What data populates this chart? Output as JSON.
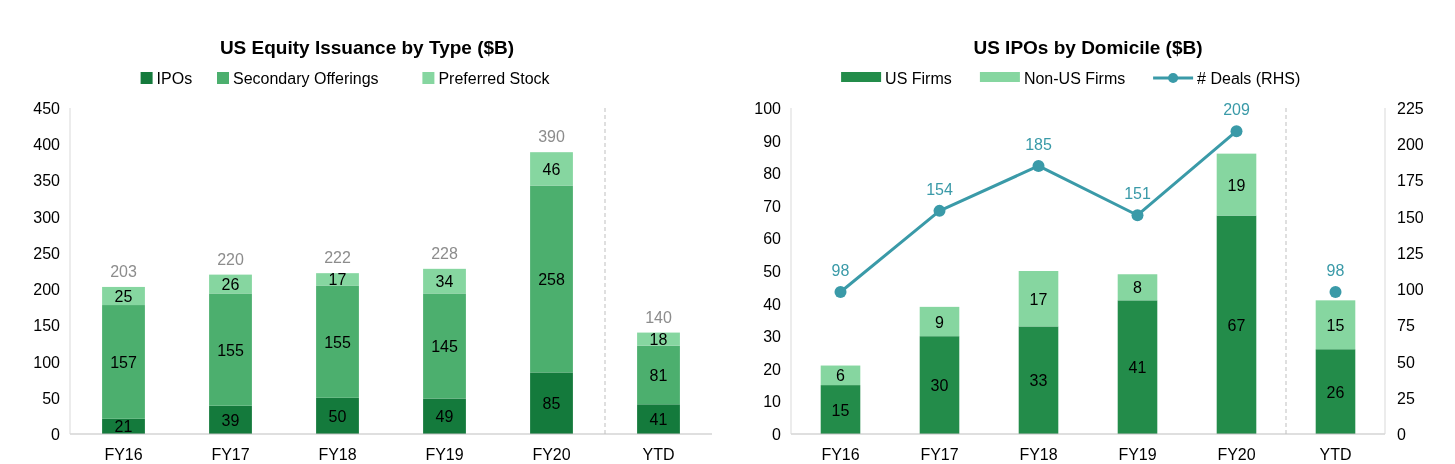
{
  "chart_data": [
    {
      "type": "bar",
      "title": "US Equity Issuance by Type ($B)",
      "categories": [
        "FY16",
        "FY17",
        "FY18",
        "FY19",
        "FY20",
        "YTD"
      ],
      "stacked": true,
      "legend": "top",
      "data_labels": true,
      "grid": false,
      "series": [
        {
          "name": "IPOs",
          "color": "#147a3c",
          "values": [
            21,
            39,
            50,
            49,
            85,
            41
          ]
        },
        {
          "name": "Secondary Offerings",
          "color": "#4caf6e",
          "values": [
            157,
            155,
            155,
            145,
            258,
            81
          ]
        },
        {
          "name": "Preferred Stock",
          "color": "#86d6a0",
          "values": [
            25,
            26,
            17,
            34,
            46,
            18
          ]
        }
      ],
      "totals": [
        "203",
        "220",
        "222",
        "228",
        "390",
        "140"
      ],
      "ylim": [
        0,
        450
      ],
      "yticks": [
        0,
        50,
        100,
        150,
        200,
        250,
        300,
        350,
        400,
        450
      ]
    },
    {
      "type": "bar",
      "title": "US IPOs by Domicile ($B)",
      "categories": [
        "FY16",
        "FY17",
        "FY18",
        "FY19",
        "FY20",
        "YTD"
      ],
      "stacked": true,
      "legend": "top",
      "data_labels": true,
      "grid": false,
      "marker": "circle",
      "series": [
        {
          "name": "US Firms",
          "color": "#238c4a",
          "values": [
            15,
            30,
            33,
            41,
            67,
            26
          ]
        },
        {
          "name": "Non-US Firms",
          "color": "#86d6a0",
          "values": [
            6,
            9,
            17,
            8,
            19,
            15
          ]
        },
        {
          "name": "# Deals (RHS)",
          "type": "line",
          "axis": "y2",
          "color": "#3a9aa8",
          "values": [
            98,
            154,
            185,
            151,
            209,
            null
          ]
        },
        {
          "type": "scatter",
          "axis": "y2",
          "color": "#3a9aa8",
          "values": [
            null,
            null,
            null,
            null,
            null,
            98
          ]
        }
      ],
      "ylim": [
        0,
        100
      ],
      "yticks": [
        0,
        10,
        20,
        30,
        40,
        50,
        60,
        70,
        80,
        90,
        100
      ],
      "y2lim": [
        0,
        225
      ],
      "y2ticks": [
        0,
        25,
        50,
        75,
        100,
        125,
        150,
        175,
        200,
        225
      ]
    }
  ]
}
